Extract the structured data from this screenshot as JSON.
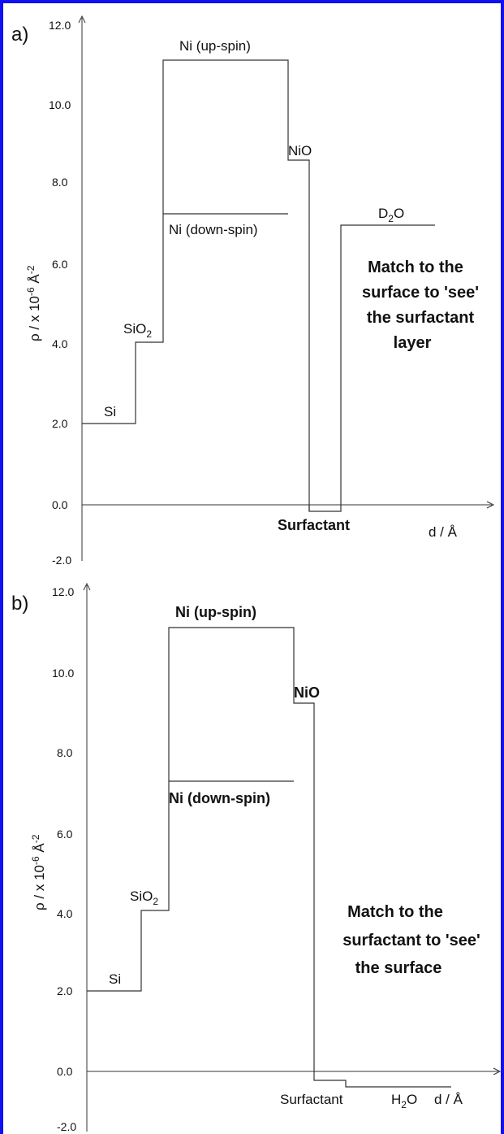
{
  "panels": [
    {
      "label": "a)",
      "ylabel": "ρ / x 10",
      "ylabel_sup": "-6",
      "ylabel_rest": " Å",
      "ylabel_sup2": "-2",
      "xlabel": "d / Å",
      "yticks": [
        "12.0",
        "10.0",
        "8.0",
        "6.0",
        "4.0",
        "2.0",
        "0.0",
        "-2.0"
      ],
      "annotations": {
        "si": "Si",
        "sio2": "SiO",
        "sio2_sub": "2",
        "ni_up": "Ni (up-spin)",
        "ni_down": "Ni (down-spin)",
        "nio": "NiO",
        "medium": "D",
        "medium_sub": "2",
        "medium_rest": "O",
        "surfactant": "Surfactant"
      },
      "note": [
        "Match to the",
        "surface to 'see'",
        "the surfactant",
        "layer"
      ]
    },
    {
      "label": "b)",
      "ylabel": "ρ / x 10",
      "ylabel_sup": "-6",
      "ylabel_rest": " Å",
      "ylabel_sup2": "-2",
      "xlabel": "d / Å",
      "yticks": [
        "12.0",
        "10.0",
        "8.0",
        "6.0",
        "4.0",
        "2.0",
        "0.0",
        "-2.0"
      ],
      "annotations": {
        "si": "Si",
        "sio2": "SiO",
        "sio2_sub": "2",
        "ni_up": "Ni (up-spin)",
        "ni_down": "Ni (down-spin)",
        "nio": "NiO",
        "medium": "H",
        "medium_sub": "2",
        "medium_rest": "O",
        "surfactant": "Surfactant"
      },
      "note": [
        "Match to the",
        "surfactant to 'see'",
        "the surface"
      ]
    }
  ],
  "chart_data": [
    {
      "type": "line",
      "title": "",
      "xlabel": "d / Å",
      "ylabel": "ρ / x 10-6 Å-2",
      "ylim": [
        -2.0,
        12.0
      ],
      "yticks": [
        12.0,
        10.0,
        8.0,
        6.0,
        4.0,
        2.0,
        0.0,
        -2.0
      ],
      "grid": false,
      "series": [
        {
          "name": "",
          "step_profile": [
            {
              "layer": "Si",
              "rho": 2.07
            },
            {
              "layer": "SiO2",
              "rho": 3.47
            },
            {
              "layer": "Ni (up-spin)",
              "rho": 11.1
            },
            {
              "layer": "Ni (down-spin)",
              "rho": 7.3
            },
            {
              "layer": "NiO",
              "rho": 8.6
            },
            {
              "layer": "Surfactant",
              "rho": -0.4
            },
            {
              "layer": "D2O",
              "rho": 6.35
            }
          ]
        }
      ]
    },
    {
      "type": "line",
      "title": "",
      "xlabel": "d / Å",
      "ylabel": "ρ / x 10-6 Å-2",
      "ylim": [
        -2.0,
        12.0
      ],
      "yticks": [
        12.0,
        10.0,
        8.0,
        6.0,
        4.0,
        2.0,
        0.0,
        -2.0
      ],
      "grid": false,
      "series": [
        {
          "name": "",
          "step_profile": [
            {
              "layer": "Si",
              "rho": 2.07
            },
            {
              "layer": "SiO2",
              "rho": 3.47
            },
            {
              "layer": "Ni (up-spin)",
              "rho": 11.1
            },
            {
              "layer": "Ni (down-spin)",
              "rho": 7.3
            },
            {
              "layer": "NiO",
              "rho": 8.6
            },
            {
              "layer": "Surfactant",
              "rho": -0.4
            },
            {
              "layer": "H2O",
              "rho": -0.56
            }
          ]
        }
      ]
    }
  ]
}
